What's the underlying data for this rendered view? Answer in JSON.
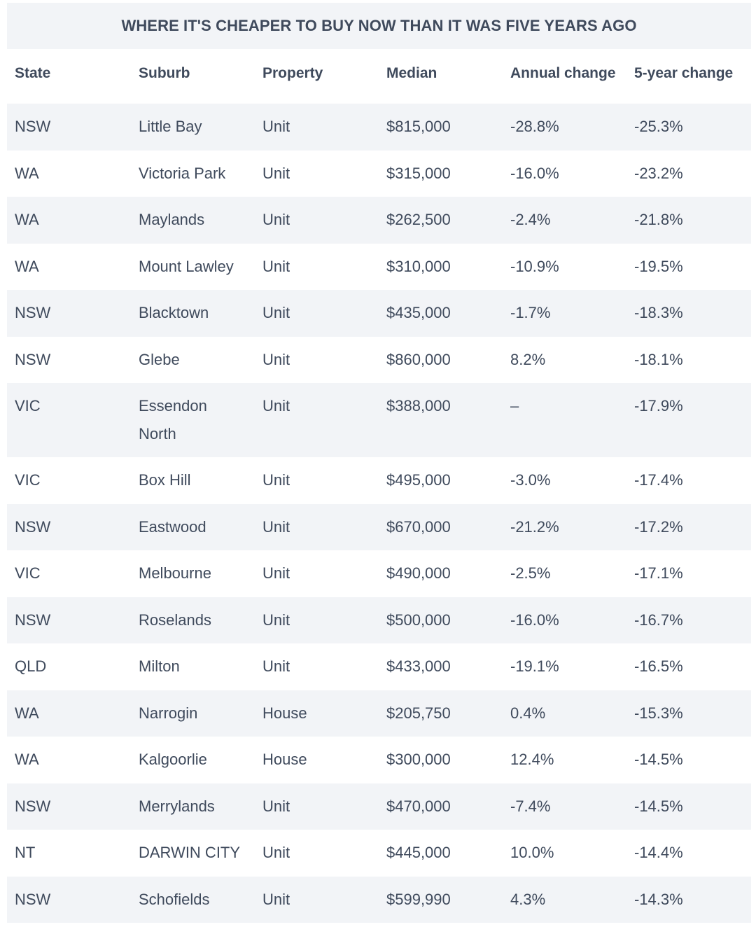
{
  "title": "WHERE IT'S CHEAPER TO BUY NOW THAN IT WAS FIVE YEARS AGO",
  "columns": [
    "State",
    "Suburb",
    "Property",
    "Median",
    "Annual change",
    "5-year change"
  ],
  "rows": [
    [
      "NSW",
      "Little Bay",
      "Unit",
      "$815,000",
      "-28.8%",
      "-25.3%"
    ],
    [
      "WA",
      "Victoria Park",
      "Unit",
      "$315,000",
      "-16.0%",
      "-23.2%"
    ],
    [
      "WA",
      "Maylands",
      "Unit",
      "$262,500",
      "-2.4%",
      "-21.8%"
    ],
    [
      "WA",
      "Mount Lawley",
      "Unit",
      "$310,000",
      "-10.9%",
      "-19.5%"
    ],
    [
      "NSW",
      "Blacktown",
      "Unit",
      "$435,000",
      "-1.7%",
      "-18.3%"
    ],
    [
      "NSW",
      "Glebe",
      "Unit",
      "$860,000",
      "8.2%",
      "-18.1%"
    ],
    [
      "VIC",
      "Essendon North",
      "Unit",
      "$388,000",
      "–",
      "-17.9%"
    ],
    [
      "VIC",
      "Box Hill",
      "Unit",
      "$495,000",
      "-3.0%",
      "-17.4%"
    ],
    [
      "NSW",
      "Eastwood",
      "Unit",
      "$670,000",
      "-21.2%",
      "-17.2%"
    ],
    [
      "VIC",
      "Melbourne",
      "Unit",
      "$490,000",
      "-2.5%",
      "-17.1%"
    ],
    [
      "NSW",
      "Roselands",
      "Unit",
      "$500,000",
      "-16.0%",
      "-16.7%"
    ],
    [
      "QLD",
      "Milton",
      "Unit",
      "$433,000",
      "-19.1%",
      "-16.5%"
    ],
    [
      "WA",
      "Narrogin",
      "House",
      "$205,750",
      "0.4%",
      "-15.3%"
    ],
    [
      "WA",
      "Kalgoorlie",
      "House",
      "$300,000",
      "12.4%",
      "-14.5%"
    ],
    [
      "NSW",
      "Merrylands",
      "Unit",
      "$470,000",
      "-7.4%",
      "-14.5%"
    ],
    [
      "NT",
      "DARWIN CITY",
      "Unit",
      "$445,000",
      "10.0%",
      "-14.4%"
    ],
    [
      "NSW",
      "Schofields",
      "Unit",
      "$599,990",
      "4.3%",
      "-14.3%"
    ]
  ]
}
